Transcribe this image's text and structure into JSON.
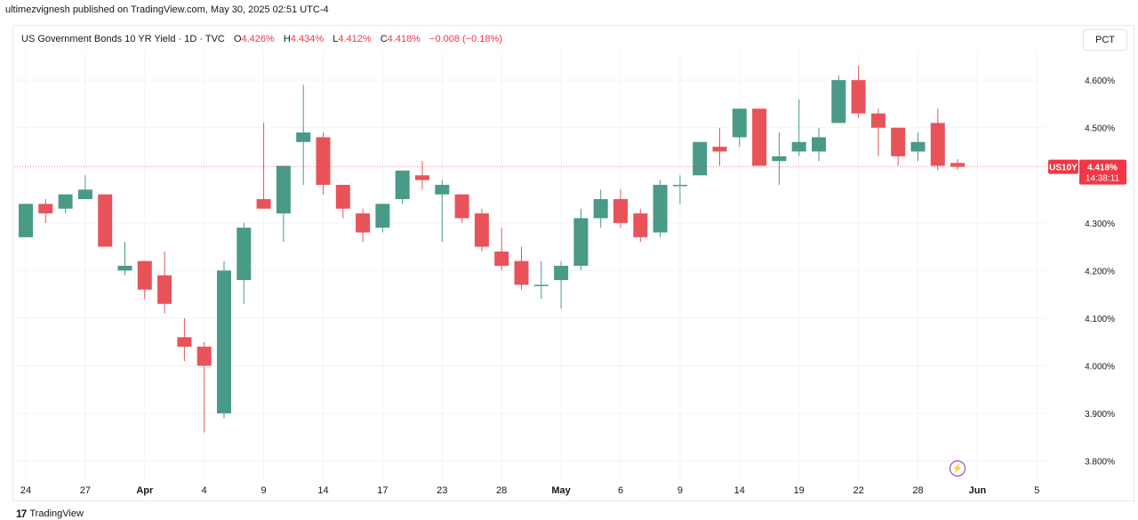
{
  "publisher": "ultimezvignesh published on TradingView.com, May 30, 2025 02:51 UTC-4",
  "legend": {
    "symbol": "US Government Bonds 10 YR Yield · 1D · TVC",
    "open_label": "O",
    "open": "4.426%",
    "high_label": "H",
    "high": "4.434%",
    "low_label": "L",
    "low": "4.412%",
    "close_label": "C",
    "close": "4.418%",
    "change": "−0.008 (−0.18%)"
  },
  "scale_button": "PCT",
  "last_price": {
    "ticker": "US10Y",
    "value": "4.418%",
    "countdown": "14:38:11"
  },
  "footer": {
    "logo_text": "TradingView"
  },
  "icons": {
    "alert": "lightning-bolt-icon",
    "logo": "tradingview-logo-icon"
  },
  "colors": {
    "up": "#4a9a88",
    "down": "#e8535a",
    "last_price_line": "#f23645"
  },
  "chart_data": {
    "type": "candlestick",
    "title": "US Government Bonds 10 YR Yield · 1D · TVC",
    "ylim": [
      3.76,
      4.66
    ],
    "y_ticks": [
      "4.600%",
      "4.500%",
      "4.300%",
      "4.200%",
      "4.100%",
      "4.000%",
      "3.900%",
      "3.800%"
    ],
    "y_tick_values": [
      4.6,
      4.5,
      4.3,
      4.2,
      4.1,
      4.0,
      3.9,
      3.8
    ],
    "x_ticks": [
      {
        "label": "24",
        "i": 0
      },
      {
        "label": "27",
        "i": 3
      },
      {
        "label": "Apr",
        "i": 6
      },
      {
        "label": "4",
        "i": 9
      },
      {
        "label": "9",
        "i": 12
      },
      {
        "label": "14",
        "i": 15
      },
      {
        "label": "17",
        "i": 18
      },
      {
        "label": "23",
        "i": 21
      },
      {
        "label": "28",
        "i": 24
      },
      {
        "label": "May",
        "i": 27
      },
      {
        "label": "6",
        "i": 30
      },
      {
        "label": "9",
        "i": 33
      },
      {
        "label": "14",
        "i": 36
      },
      {
        "label": "19",
        "i": 39
      },
      {
        "label": "22",
        "i": 42
      },
      {
        "label": "28",
        "i": 45
      },
      {
        "label": "Jun",
        "i": 48
      },
      {
        "label": "5",
        "i": 51
      }
    ],
    "last_value": 4.418,
    "candles": [
      {
        "o": 4.27,
        "h": 4.34,
        "l": 4.27,
        "c": 4.34
      },
      {
        "o": 4.34,
        "h": 4.35,
        "l": 4.3,
        "c": 4.32
      },
      {
        "o": 4.33,
        "h": 4.36,
        "l": 4.32,
        "c": 4.36
      },
      {
        "o": 4.35,
        "h": 4.4,
        "l": 4.35,
        "c": 4.37
      },
      {
        "o": 4.36,
        "h": 4.36,
        "l": 4.25,
        "c": 4.25
      },
      {
        "o": 4.2,
        "h": 4.26,
        "l": 4.19,
        "c": 4.21
      },
      {
        "o": 4.22,
        "h": 4.22,
        "l": 4.14,
        "c": 4.16
      },
      {
        "o": 4.19,
        "h": 4.24,
        "l": 4.11,
        "c": 4.13
      },
      {
        "o": 4.06,
        "h": 4.1,
        "l": 4.01,
        "c": 4.04
      },
      {
        "o": 4.04,
        "h": 4.05,
        "l": 3.86,
        "c": 4.0
      },
      {
        "o": 3.9,
        "h": 4.22,
        "l": 3.89,
        "c": 4.2
      },
      {
        "o": 4.18,
        "h": 4.3,
        "l": 4.13,
        "c": 4.29
      },
      {
        "o": 4.35,
        "h": 4.51,
        "l": 4.33,
        "c": 4.33
      },
      {
        "o": 4.32,
        "h": 4.42,
        "l": 4.26,
        "c": 4.42
      },
      {
        "o": 4.47,
        "h": 4.59,
        "l": 4.38,
        "c": 4.49
      },
      {
        "o": 4.48,
        "h": 4.49,
        "l": 4.36,
        "c": 4.38
      },
      {
        "o": 4.38,
        "h": 4.38,
        "l": 4.31,
        "c": 4.33
      },
      {
        "o": 4.32,
        "h": 4.33,
        "l": 4.26,
        "c": 4.28
      },
      {
        "o": 4.29,
        "h": 4.34,
        "l": 4.28,
        "c": 4.34
      },
      {
        "o": 4.35,
        "h": 4.41,
        "l": 4.34,
        "c": 4.41
      },
      {
        "o": 4.4,
        "h": 4.43,
        "l": 4.37,
        "c": 4.39
      },
      {
        "o": 4.36,
        "h": 4.39,
        "l": 4.26,
        "c": 4.38
      },
      {
        "o": 4.36,
        "h": 4.36,
        "l": 4.3,
        "c": 4.31
      },
      {
        "o": 4.32,
        "h": 4.33,
        "l": 4.24,
        "c": 4.25
      },
      {
        "o": 4.24,
        "h": 4.29,
        "l": 4.2,
        "c": 4.21
      },
      {
        "o": 4.22,
        "h": 4.25,
        "l": 4.16,
        "c": 4.17
      },
      {
        "o": 4.17,
        "h": 4.22,
        "l": 4.14,
        "c": 4.17
      },
      {
        "o": 4.18,
        "h": 4.22,
        "l": 4.12,
        "c": 4.21
      },
      {
        "o": 4.21,
        "h": 4.33,
        "l": 4.2,
        "c": 4.31
      },
      {
        "o": 4.31,
        "h": 4.37,
        "l": 4.29,
        "c": 4.35
      },
      {
        "o": 4.35,
        "h": 4.37,
        "l": 4.29,
        "c": 4.3
      },
      {
        "o": 4.32,
        "h": 4.33,
        "l": 4.26,
        "c": 4.27
      },
      {
        "o": 4.28,
        "h": 4.39,
        "l": 4.27,
        "c": 4.38
      },
      {
        "o": 4.38,
        "h": 4.4,
        "l": 4.34,
        "c": 4.38
      },
      {
        "o": 4.4,
        "h": 4.47,
        "l": 4.4,
        "c": 4.47
      },
      {
        "o": 4.46,
        "h": 4.5,
        "l": 4.42,
        "c": 4.45
      },
      {
        "o": 4.48,
        "h": 4.54,
        "l": 4.46,
        "c": 4.54
      },
      {
        "o": 4.54,
        "h": 4.54,
        "l": 4.42,
        "c": 4.42
      },
      {
        "o": 4.43,
        "h": 4.49,
        "l": 4.38,
        "c": 4.44
      },
      {
        "o": 4.45,
        "h": 4.56,
        "l": 4.44,
        "c": 4.47
      },
      {
        "o": 4.45,
        "h": 4.5,
        "l": 4.43,
        "c": 4.48
      },
      {
        "o": 4.51,
        "h": 4.61,
        "l": 4.51,
        "c": 4.6
      },
      {
        "o": 4.6,
        "h": 4.63,
        "l": 4.52,
        "c": 4.53
      },
      {
        "o": 4.53,
        "h": 4.54,
        "l": 4.44,
        "c": 4.5
      },
      {
        "o": 4.5,
        "h": 4.5,
        "l": 4.42,
        "c": 4.44
      },
      {
        "o": 4.45,
        "h": 4.49,
        "l": 4.43,
        "c": 4.47
      },
      {
        "o": 4.51,
        "h": 4.54,
        "l": 4.41,
        "c": 4.42
      },
      {
        "o": 4.426,
        "h": 4.434,
        "l": 4.412,
        "c": 4.418
      }
    ]
  }
}
